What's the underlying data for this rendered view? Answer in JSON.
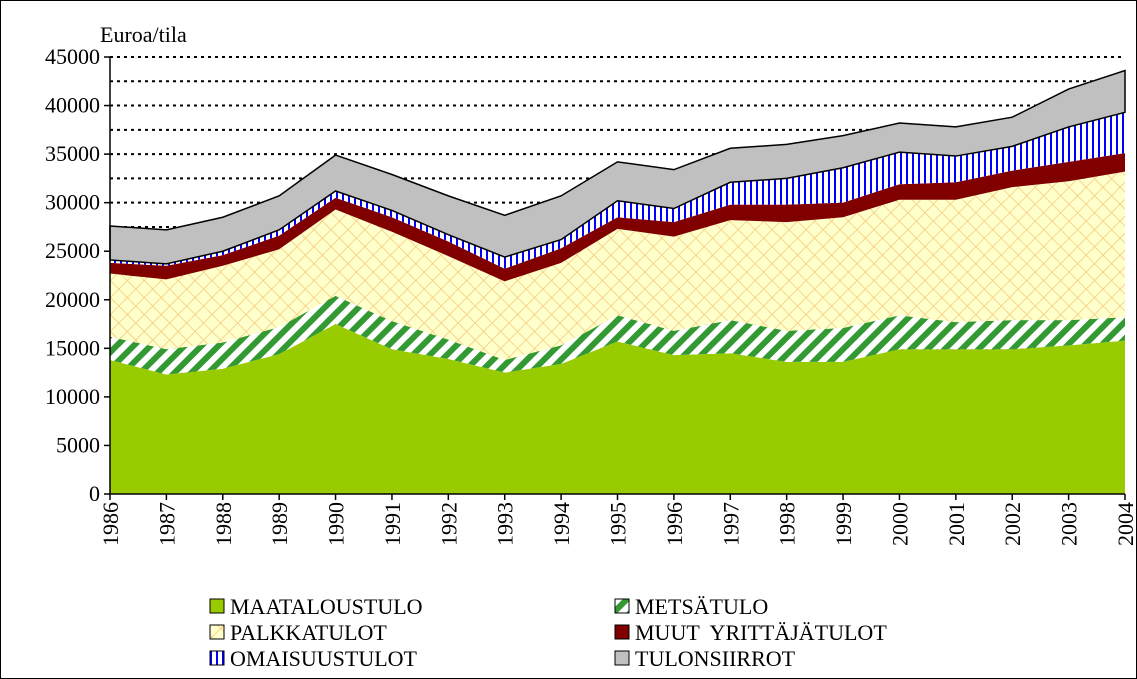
{
  "chart_data": {
    "type": "stacked_area",
    "y_label": "Euroa/tila",
    "categories": [
      "1986",
      "1987",
      "1988",
      "1989",
      "1990",
      "1991",
      "1992",
      "1993",
      "1994",
      "1995",
      "1996",
      "1997",
      "1998",
      "1999",
      "2000",
      "2001",
      "2002",
      "2003",
      "2004"
    ],
    "series": [
      {
        "name": "MAATALOUSTULO",
        "color": "#99cc00",
        "pattern": "solid",
        "values": [
          13800,
          12300,
          12900,
          14400,
          17500,
          14900,
          13900,
          12500,
          13400,
          15700,
          14300,
          14500,
          13600,
          13600,
          14900,
          14900,
          14900,
          15300,
          15800
        ]
      },
      {
        "name": "METSÄTULO",
        "color": "#339933",
        "pattern": "diagonal",
        "values": [
          2400,
          2600,
          2700,
          2800,
          2900,
          2900,
          2000,
          1300,
          1900,
          2700,
          2500,
          3400,
          3200,
          3500,
          3500,
          2800,
          3000,
          2600,
          2400
        ]
      },
      {
        "name": "PALKKATULOT",
        "color": "#f5c77a",
        "pattern": "crosshatch",
        "values": [
          6500,
          7200,
          7900,
          8000,
          8900,
          9200,
          8600,
          8100,
          8500,
          8900,
          9700,
          10300,
          11200,
          11400,
          11900,
          12600,
          13700,
          14300,
          15000
        ]
      },
      {
        "name": "MUUT  YRITTÄJÄTULOT",
        "color": "#800000",
        "pattern": "solid",
        "values": [
          1100,
          1400,
          1100,
          1400,
          1200,
          1500,
          1500,
          1300,
          1500,
          1200,
          1500,
          1600,
          1800,
          1500,
          1600,
          1800,
          1700,
          2000,
          1900
        ]
      },
      {
        "name": "OMAISUUSTULOT",
        "color": "#0000ff",
        "pattern": "vertical",
        "values": [
          300,
          200,
          400,
          600,
          700,
          700,
          700,
          1200,
          900,
          1700,
          1400,
          2300,
          2700,
          3600,
          3300,
          2700,
          2500,
          3600,
          4200
        ]
      },
      {
        "name": "TULONSIIRROT",
        "color": "#c0c0c0",
        "pattern": "solid",
        "values": [
          3500,
          3500,
          3500,
          3500,
          3700,
          3700,
          4000,
          4300,
          4500,
          4000,
          4000,
          3500,
          3500,
          3300,
          3000,
          3000,
          3000,
          3900,
          4300
        ]
      }
    ],
    "ylim": [
      0,
      45000
    ],
    "yticks": [
      0,
      5000,
      10000,
      15000,
      20000,
      25000,
      30000,
      35000,
      40000,
      45000
    ],
    "grid_values": [
      2500,
      5000,
      7500,
      10000,
      12500,
      15000,
      17500,
      20000,
      22500,
      25000,
      27500,
      30000,
      32500,
      35000,
      37500,
      40000,
      42500,
      45000
    ],
    "grid": true
  }
}
